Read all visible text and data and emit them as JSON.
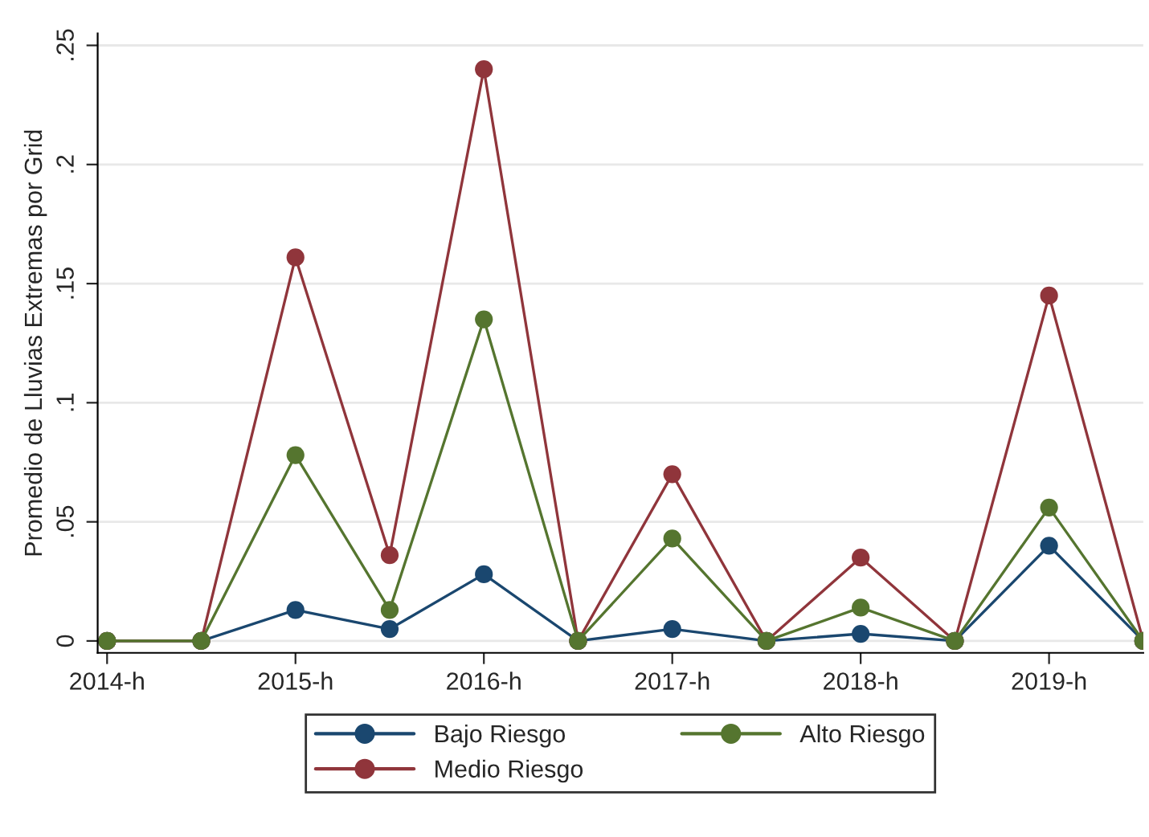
{
  "chart_data": {
    "type": "line",
    "ylabel": "Promedio de Lluvias Extremas por Grid",
    "x": [
      2014,
      2014.5,
      2015,
      2015.5,
      2016,
      2016.5,
      2017,
      2017.5,
      2018,
      2018.5,
      2019,
      2019.5
    ],
    "series": [
      {
        "name": "Bajo Riesgo",
        "color": "#1a476f",
        "values": [
          0,
          0,
          0.013,
          0.005,
          0.028,
          0,
          0.005,
          0,
          0.003,
          0,
          0.04,
          0
        ]
      },
      {
        "name": "Medio Riesgo",
        "color": "#90353b",
        "values": [
          0,
          0,
          0.161,
          0.036,
          0.24,
          0,
          0.07,
          0,
          0.035,
          0,
          0.145,
          0
        ]
      },
      {
        "name": "Alto Riesgo",
        "color": "#55752f",
        "values": [
          0,
          0,
          0.078,
          0.013,
          0.135,
          0,
          0.043,
          0,
          0.014,
          0,
          0.056,
          0
        ]
      }
    ],
    "xlim": [
      2013.95,
      2019.5
    ],
    "xticks": [
      {
        "value": 2014,
        "label": "2014-h"
      },
      {
        "value": 2015,
        "label": "2015-h"
      },
      {
        "value": 2016,
        "label": "2016-h"
      },
      {
        "value": 2017,
        "label": "2017-h"
      },
      {
        "value": 2018,
        "label": "2018-h"
      },
      {
        "value": 2019,
        "label": "2019-h"
      }
    ],
    "ylim": [
      -0.005,
      0.255
    ],
    "yticks": [
      {
        "value": 0,
        "label": "0"
      },
      {
        "value": 0.05,
        "label": ".05"
      },
      {
        "value": 0.1,
        "label": ".1"
      },
      {
        "value": 0.15,
        "label": ".15"
      },
      {
        "value": 0.2,
        "label": ".2"
      },
      {
        "value": 0.25,
        "label": ".25"
      }
    ],
    "grid": "y",
    "legend": "bottom",
    "marker": "circle",
    "line_style": "solid"
  }
}
